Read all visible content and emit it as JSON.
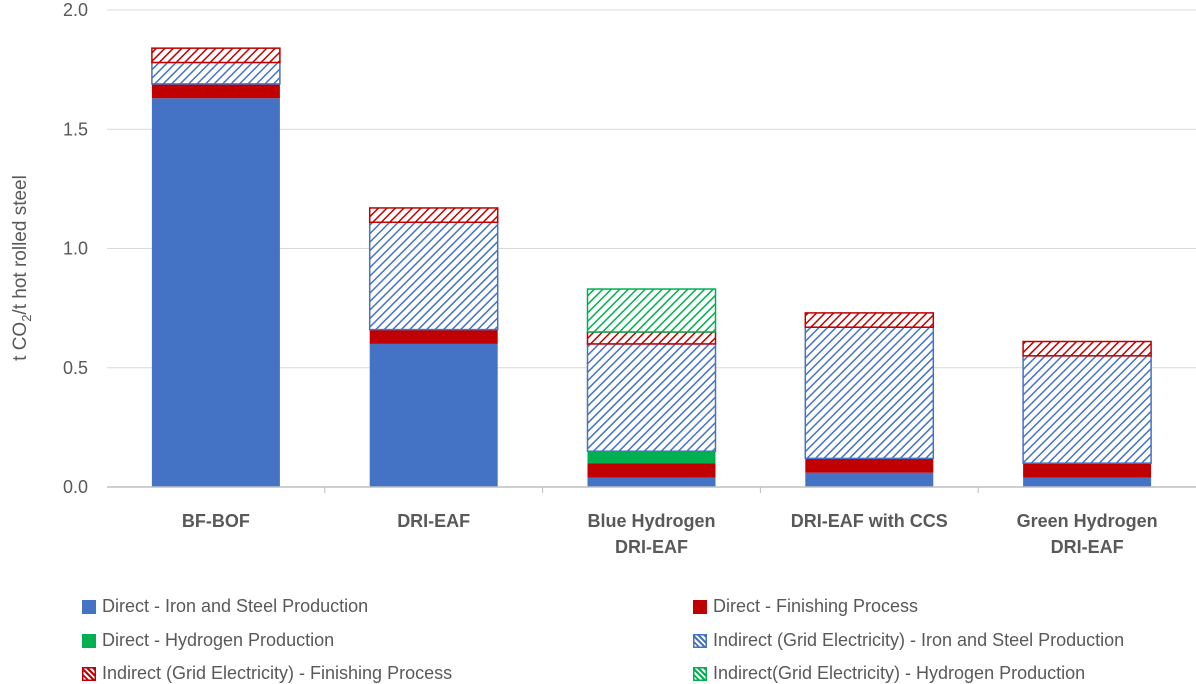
{
  "chart_data": {
    "type": "bar",
    "stacked": true,
    "title": "",
    "xlabel": "",
    "ylabel": "t CO2/t hot rolled steel",
    "ylim": [
      0,
      2.0
    ],
    "yticks": [
      "0.0",
      "0.5",
      "1.0",
      "1.5",
      "2.0"
    ],
    "grid": true,
    "legend_position": "bottom",
    "categories": [
      [
        "BF-BOF"
      ],
      [
        "DRI-EAF"
      ],
      [
        "Blue Hydrogen",
        "DRI-EAF"
      ],
      [
        "DRI-EAF with CCS"
      ],
      [
        "Green Hydrogen",
        "DRI-EAF"
      ]
    ],
    "series": [
      {
        "name": "Direct - Iron and Steel Production",
        "color": "#4472C4",
        "pattern": "solid",
        "values": [
          1.63,
          0.6,
          0.04,
          0.06,
          0.04
        ]
      },
      {
        "name": "Direct - Finishing Process",
        "color": "#C00000",
        "pattern": "solid",
        "values": [
          0.06,
          0.06,
          0.06,
          0.06,
          0.06
        ]
      },
      {
        "name": "Direct - Hydrogen Production",
        "color": "#00B050",
        "pattern": "solid",
        "values": [
          0,
          0,
          0.05,
          0,
          0
        ]
      },
      {
        "name": "Indirect (Grid Electricity) - Iron and Steel Production",
        "color": "#4472C4",
        "pattern": "hatch",
        "values": [
          0.09,
          0.45,
          0.45,
          0.55,
          0.45
        ]
      },
      {
        "name": "Indirect (Grid Electricity) - Finishing Process",
        "color": "#C00000",
        "pattern": "hatch",
        "values": [
          0.06,
          0.06,
          0.05,
          0.06,
          0.06
        ]
      },
      {
        "name": "Indirect(Grid Electricity) - Hydrogen Production",
        "color": "#00B050",
        "pattern": "hatch",
        "values": [
          0,
          0,
          0.18,
          0,
          0
        ]
      }
    ]
  }
}
